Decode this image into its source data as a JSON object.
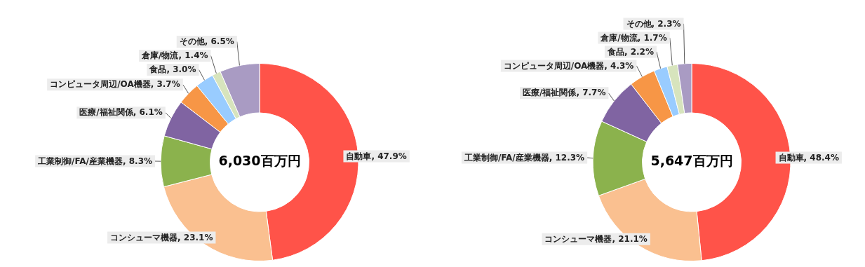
{
  "chart_data": [
    {
      "type": "donut",
      "categories": [
        "自動車",
        "コンシューマ機器",
        "工業制御/FA/産業機器",
        "医療/福祉関係",
        "コンピュータ周辺/OA機器",
        "食品",
        "倉庫/物流",
        "その他"
      ],
      "values": [
        47.9,
        23.1,
        8.3,
        6.1,
        3.7,
        3.0,
        1.4,
        6.5
      ],
      "value_labels": [
        "47.9%",
        "23.1%",
        "8.3%",
        "6.1%",
        "3.7%",
        "3.0%",
        "1.4%",
        "6.5%"
      ],
      "colors": [
        "#ff5349",
        "#fac090",
        "#8bb24d",
        "#8064a2",
        "#f79646",
        "#99ccff",
        "#d7e4bd",
        "#a99bc3"
      ],
      "annotations": [
        "6,030百万円"
      ],
      "legend": false
    },
    {
      "type": "donut",
      "categories": [
        "自動車",
        "コンシューマ機器",
        "工業制御/FA/産業機器",
        "医療/福祉関係",
        "コンピュータ周辺/OA機器",
        "食品",
        "倉庫/物流",
        "その他"
      ],
      "values": [
        48.4,
        21.1,
        12.3,
        7.7,
        4.3,
        2.2,
        1.7,
        2.3
      ],
      "value_labels": [
        "48.4%",
        "21.1%",
        "12.3%",
        "7.7%",
        "4.3%",
        "2.2%",
        "1.7%",
        "2.3%"
      ],
      "colors": [
        "#ff5349",
        "#fac090",
        "#8bb24d",
        "#8064a2",
        "#f79646",
        "#99ccff",
        "#d7e4bd",
        "#a99bc3"
      ],
      "annotations": [
        "5,647百万円"
      ],
      "legend": false
    }
  ]
}
